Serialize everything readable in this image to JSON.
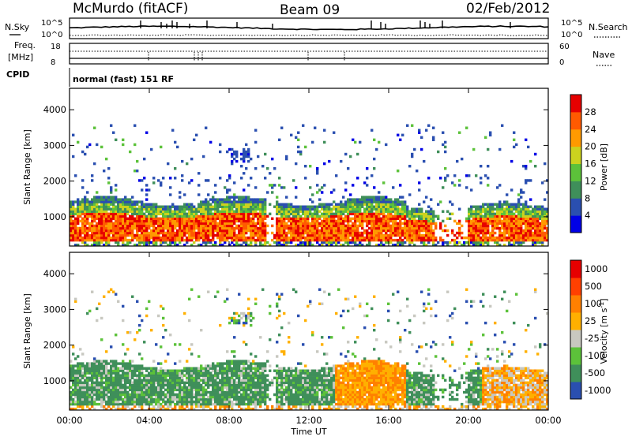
{
  "header": {
    "station": "McMurdo (fitACF)",
    "beam": "Beam 09",
    "date": "02/Feb/2012"
  },
  "noise_panel": {
    "left_label": "N.Sky",
    "right_label": "N.Search",
    "left_ticks": [
      "10^5",
      "10^0"
    ],
    "right_ticks": [
      "10^5",
      "10^0"
    ]
  },
  "freq_panel": {
    "left_label_1": "Freq.",
    "left_label_2": "[MHz]",
    "right_label": "Nave",
    "left_ticks": [
      "18",
      "8"
    ],
    "right_ticks": [
      "60",
      "0"
    ]
  },
  "cpid": {
    "label": "CPID",
    "value": "normal (fast) 151 RF"
  },
  "colors": {
    "power": [
      "#0000e6",
      "#2a4fb0",
      "#3f8f5a",
      "#5cc23a",
      "#ccd21e",
      "#ff9a00",
      "#ff5a00",
      "#e60000"
    ],
    "velocity": [
      "#2a4fb0",
      "#3f8f5a",
      "#5cc23a",
      "#c8c8c0",
      "#ffb000",
      "#ff8000",
      "#ff4000",
      "#e60000"
    ]
  },
  "chart_data": [
    {
      "type": "heatmap",
      "name": "power",
      "ylabel": "Slant Range [km]",
      "ylim": [
        180,
        4600
      ],
      "xlim_hours": [
        0,
        24
      ],
      "y_ticks": [
        1000,
        2000,
        3000,
        4000
      ],
      "colorbar_label": "Power [dB]",
      "colorbar_ticks": [
        "4",
        "8",
        "12",
        "16",
        "20",
        "24",
        "28"
      ],
      "colorbar_range": [
        0,
        32
      ]
    },
    {
      "type": "heatmap",
      "name": "velocity",
      "xlabel": "Time UT",
      "ylabel": "Slant Range [km]",
      "ylim": [
        180,
        4600
      ],
      "xlim_hours": [
        0,
        24
      ],
      "y_ticks": [
        1000,
        2000,
        3000,
        4000
      ],
      "x_ticks": [
        "00:00",
        "04:00",
        "08:00",
        "12:00",
        "16:00",
        "20:00",
        "00:00"
      ],
      "colorbar_label": "Velocity [m s",
      "colorbar_label_sup": "-1",
      "colorbar_label_end": "]",
      "colorbar_ticks": [
        "1000",
        "500",
        "100",
        "25",
        "-25",
        "-100",
        "-500",
        "-1000"
      ]
    }
  ]
}
